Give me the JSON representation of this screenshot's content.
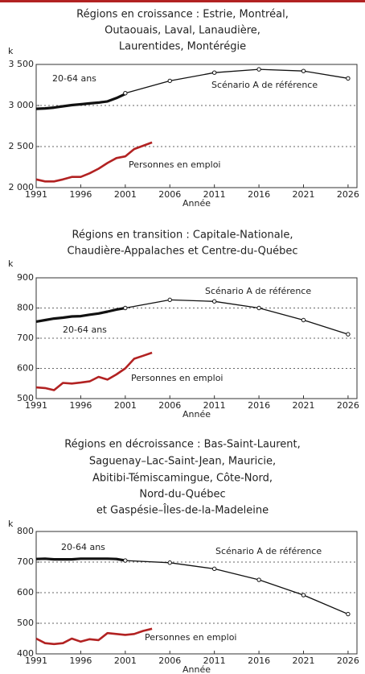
{
  "chart_data": [
    {
      "type": "line",
      "title": [
        "Régions en croissance : Estrie, Montréal,",
        "Outaouais, Laval, Lanaudière,",
        "Laurentides, Montérégie"
      ],
      "y_label": "k",
      "x_label": "Année",
      "xlim": [
        1991,
        2027
      ],
      "xticks": [
        1991,
        1996,
        2001,
        2006,
        2011,
        2016,
        2021,
        2026
      ],
      "ylim": [
        2000,
        3500
      ],
      "yticks": [
        {
          "value": 2000,
          "label": "2 000"
        },
        {
          "value": 2500,
          "label": "2 500"
        },
        {
          "value": 3000,
          "label": "3 000"
        },
        {
          "value": 3500,
          "label": "3 500"
        }
      ],
      "grid": true,
      "series": [
        {
          "name": "20-64 ans",
          "color": "#111111",
          "x": [
            1991,
            1992,
            1993,
            1994,
            1995,
            1996,
            1997,
            1998,
            1999,
            2000,
            2001
          ],
          "values": [
            2960,
            2965,
            2975,
            2990,
            3005,
            3015,
            3025,
            3035,
            3050,
            3090,
            3140
          ]
        },
        {
          "name": "Scénario A de référence",
          "color": "#111111",
          "markers": true,
          "x": [
            2001,
            2006,
            2011,
            2016,
            2021,
            2026
          ],
          "values": [
            3150,
            3300,
            3400,
            3440,
            3420,
            3330
          ]
        },
        {
          "name": "Personnes en emploi",
          "color": "#b22222",
          "x": [
            1991,
            1992,
            1993,
            1994,
            1995,
            1996,
            1997,
            1998,
            1999,
            2000,
            2001,
            2002,
            2003,
            2004
          ],
          "values": [
            2100,
            2075,
            2075,
            2100,
            2130,
            2130,
            2175,
            2230,
            2300,
            2360,
            2380,
            2470,
            2510,
            2550
          ]
        }
      ]
    },
    {
      "type": "line",
      "title": [
        "Régions en transition : Capitale-Nationale,",
        "Chaudière-Appalaches et Centre-du-Québec"
      ],
      "y_label": "k",
      "x_label": "Année",
      "xlim": [
        1991,
        2027
      ],
      "xticks": [
        1991,
        1996,
        2001,
        2006,
        2011,
        2016,
        2021,
        2026
      ],
      "ylim": [
        500,
        900
      ],
      "yticks": [
        500,
        600,
        700,
        800,
        900
      ],
      "grid": true,
      "series": [
        {
          "name": "20-64 ans",
          "color": "#111111",
          "x": [
            1991,
            1992,
            1993,
            1994,
            1995,
            1996,
            1997,
            1998,
            1999,
            2000,
            2001
          ],
          "values": [
            755,
            760,
            765,
            768,
            772,
            773,
            778,
            782,
            788,
            795,
            800
          ]
        },
        {
          "name": "Scénario A de référence",
          "color": "#111111",
          "markers": true,
          "x": [
            2001,
            2006,
            2011,
            2016,
            2021,
            2026
          ],
          "values": [
            800,
            827,
            822,
            800,
            760,
            713
          ]
        },
        {
          "name": "Personnes en emploi",
          "color": "#b22222",
          "x": [
            1991,
            1992,
            1993,
            1994,
            1995,
            1996,
            1997,
            1998,
            1999,
            2000,
            2001,
            2002,
            2003,
            2004
          ],
          "values": [
            537,
            535,
            528,
            552,
            550,
            553,
            557,
            572,
            563,
            580,
            600,
            632,
            642,
            652
          ]
        }
      ]
    },
    {
      "type": "line",
      "title": [
        "Régions en décroissance : Bas-Saint-Laurent,",
        "Saguenay–Lac-Saint-Jean, Mauricie,",
        "Abitibi-Témiscamingue, Côte-Nord,",
        "Nord-du-Québec",
        "et Gaspésie–Îles-de-la-Madeleine"
      ],
      "y_label": "k",
      "x_label": "Année",
      "xlim": [
        1991,
        2027
      ],
      "xticks": [
        1991,
        1996,
        2001,
        2006,
        2011,
        2016,
        2021,
        2026
      ],
      "ylim": [
        400,
        800
      ],
      "yticks": [
        400,
        500,
        600,
        700,
        800
      ],
      "grid": true,
      "series": [
        {
          "name": "20-64 ans",
          "color": "#111111",
          "x": [
            1991,
            1992,
            1993,
            1994,
            1995,
            1996,
            1997,
            1998,
            1999,
            2000,
            2001
          ],
          "values": [
            710,
            711,
            709,
            709,
            709,
            711,
            711,
            711,
            711,
            710,
            705
          ]
        },
        {
          "name": "Scénario A de référence",
          "color": "#111111",
          "markers": true,
          "x": [
            2001,
            2006,
            2011,
            2016,
            2021,
            2026
          ],
          "values": [
            705,
            698,
            678,
            642,
            592,
            530
          ]
        },
        {
          "name": "Personnes en emploi",
          "color": "#b22222",
          "x": [
            1991,
            1992,
            1993,
            1994,
            1995,
            1996,
            1997,
            1998,
            1999,
            2000,
            2001,
            2002,
            2003,
            2004
          ],
          "values": [
            450,
            435,
            432,
            435,
            450,
            440,
            448,
            445,
            468,
            465,
            462,
            465,
            475,
            482
          ]
        }
      ]
    }
  ]
}
